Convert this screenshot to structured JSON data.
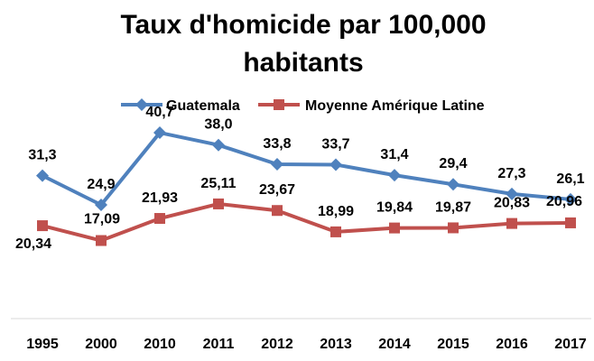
{
  "chart_data": {
    "type": "line",
    "title_lines": [
      "Taux d'homicide par 100,000",
      "habitants"
    ],
    "categories": [
      "1995",
      "2000",
      "2010",
      "2011",
      "2012",
      "2013",
      "2014",
      "2015",
      "2016",
      "2017"
    ],
    "series": [
      {
        "name": "Guatemala",
        "color": "#4f81bd",
        "marker": "diamond",
        "values": [
          31.3,
          24.9,
          40.7,
          38.0,
          33.8,
          33.7,
          31.4,
          29.4,
          27.3,
          26.1
        ],
        "labels": [
          "31,3",
          "24,9",
          "40,7",
          "38,0",
          "33,8",
          "33,7",
          "31,4",
          "29,4",
          "27,3",
          "26,1"
        ]
      },
      {
        "name": "Moyenne Amérique Latine",
        "color": "#c0504d",
        "marker": "square",
        "values": [
          20.34,
          17.09,
          21.93,
          25.11,
          23.67,
          18.99,
          19.84,
          19.87,
          20.83,
          20.96
        ],
        "labels": [
          "20,34",
          "17,09",
          "21,93",
          "25,11",
          "23,67",
          "18,99",
          "19,84",
          "19,87",
          "20,83",
          "20,96"
        ]
      }
    ],
    "ylim": [
      0,
      50
    ],
    "grid": false,
    "legend_position": "top"
  }
}
